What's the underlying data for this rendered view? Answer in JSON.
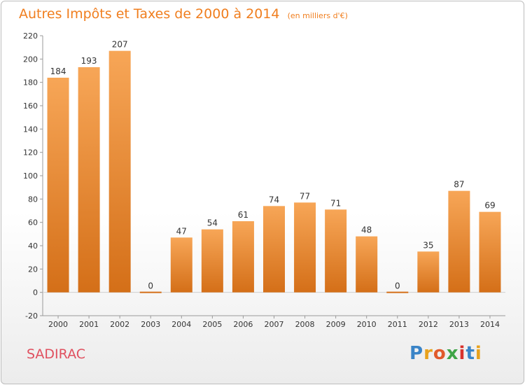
{
  "title": "Autres Impôts et Taxes de 2000 à 2014",
  "subtitle": "(en milliers d'€)",
  "city": "SADIRAC",
  "logo": {
    "letters": [
      "P",
      "r",
      "o",
      "x",
      "i",
      "t",
      "i"
    ],
    "colors": [
      "#3a84c7",
      "#e8a21c",
      "#e15a2b",
      "#3ea547",
      "#d8322c",
      "#3a84c7",
      "#e8a21c"
    ]
  },
  "colors": {
    "title": "#f07e1e",
    "bar_top": "#f7a657",
    "bar_bottom": "#d46f18",
    "city": "#e0505f"
  },
  "chart_data": {
    "type": "bar",
    "title": "Autres Impôts et Taxes de 2000 à 2014",
    "subtitle": "(en milliers d'€)",
    "categories": [
      "2000",
      "2001",
      "2002",
      "2003",
      "2004",
      "2005",
      "2006",
      "2007",
      "2008",
      "2009",
      "2010",
      "2011",
      "2012",
      "2013",
      "2014"
    ],
    "values": [
      184,
      193,
      207,
      0,
      47,
      54,
      61,
      74,
      77,
      71,
      48,
      0,
      35,
      87,
      69
    ],
    "ylim": [
      -20,
      220
    ],
    "yticks": [
      -20,
      0,
      20,
      40,
      60,
      80,
      100,
      120,
      140,
      160,
      180,
      200,
      220
    ],
    "grid": false,
    "legend": "none"
  }
}
